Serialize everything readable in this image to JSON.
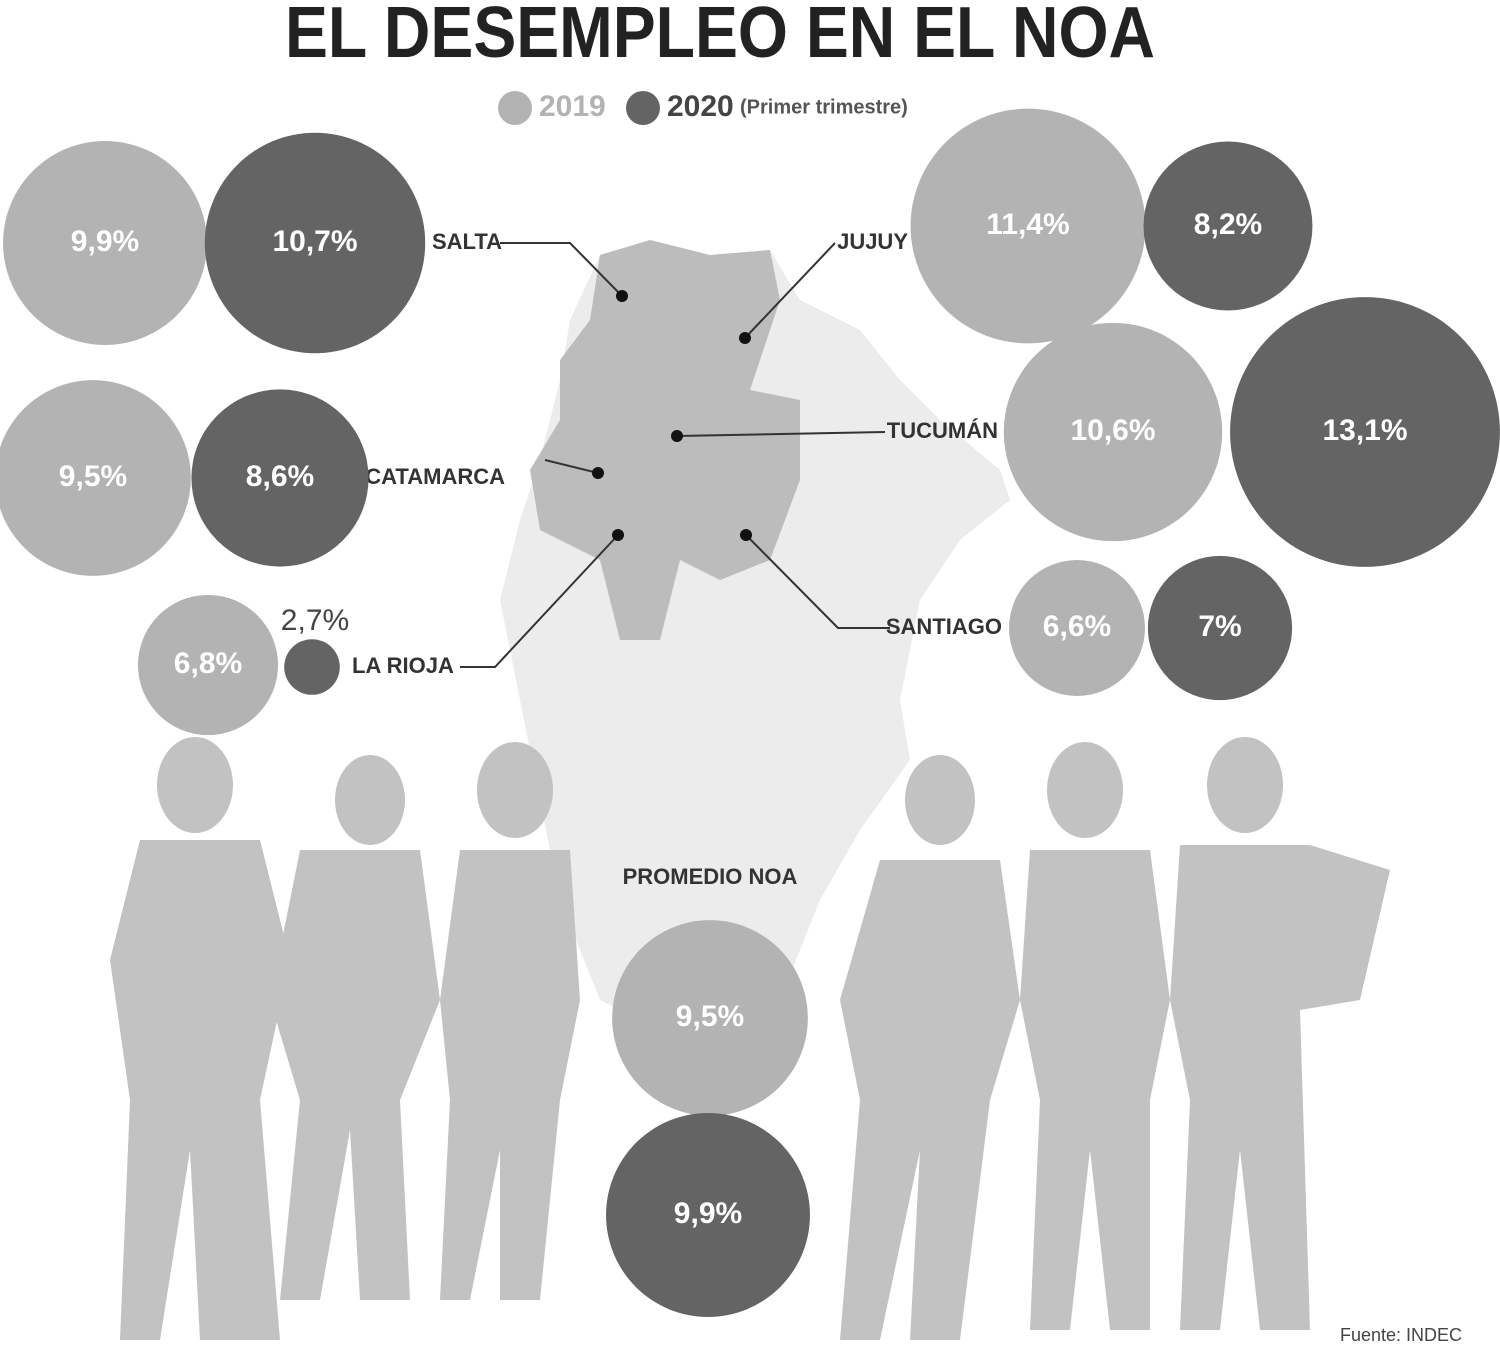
{
  "chart_data": {
    "type": "bubble",
    "title": "EL DESEMPLEO EN EL NOA",
    "legend_note": "(Primer trimestre)",
    "source": "Fuente: INDEC",
    "categories": [
      "SALTA",
      "JUJUY",
      "CATAMARCA",
      "TUCUMÁN",
      "LA RIOJA",
      "SANTIAGO",
      "PROMEDIO NOA"
    ],
    "series": [
      {
        "name": "2019",
        "color": "#b3b3b3",
        "values": [
          9.9,
          11.4,
          9.5,
          10.6,
          6.8,
          6.6,
          9.5
        ],
        "value_labels": [
          "9,9%",
          "11,4%",
          "9,5%",
          "10,6%",
          "6,8%",
          "6,6%",
          "9,5%"
        ]
      },
      {
        "name": "2020",
        "color": "#646464",
        "values": [
          10.7,
          8.2,
          8.6,
          13.1,
          2.7,
          7,
          9.9
        ],
        "value_labels": [
          "10,7%",
          "8,2%",
          "8,6%",
          "13,1%",
          "2,7%",
          "7%",
          "9,9%"
        ]
      }
    ]
  }
}
